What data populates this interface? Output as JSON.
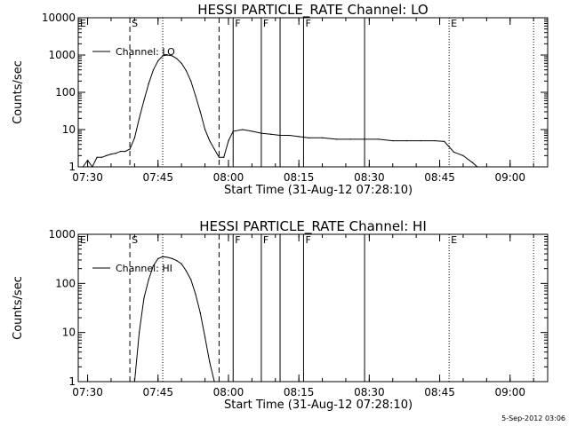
{
  "chart_data": [
    {
      "type": "line",
      "title": "HESSI PARTICLE_RATE Channel: LO",
      "xlabel": "Start Time (31-Aug-12 07:28:10)",
      "ylabel": "Counts/sec",
      "y_scale": "log",
      "xlim": [
        "07:28",
        "09:08"
      ],
      "ylim": [
        1,
        10000
      ],
      "x_tick_labels": [
        "07:30",
        "07:45",
        "08:00",
        "08:15",
        "08:30",
        "08:45",
        "09:00"
      ],
      "y_tick_labels": [
        "1",
        "10",
        "100",
        "1000",
        "10000"
      ],
      "legend": {
        "position": "top-left",
        "entries": [
          "Channel: LO"
        ]
      },
      "series": [
        {
          "name": "Channel: LO",
          "x": [
            "07:29",
            "07:30",
            "07:31",
            "07:32",
            "07:33",
            "07:34",
            "07:35",
            "07:36",
            "07:37",
            "07:38",
            "07:39",
            "07:40",
            "07:41",
            "07:42",
            "07:43",
            "07:44",
            "07:45",
            "07:46",
            "07:47",
            "07:48",
            "07:49",
            "07:50",
            "07:51",
            "07:52",
            "07:53",
            "07:54",
            "07:55",
            "07:56",
            "07:57",
            "07:58",
            "07:59",
            "08:00",
            "08:01",
            "08:03",
            "08:05",
            "08:07",
            "08:09",
            "08:11",
            "08:13",
            "08:15",
            "08:17",
            "08:20",
            "08:23",
            "08:26",
            "08:29",
            "08:32",
            "08:35",
            "08:38",
            "08:41",
            "08:44",
            "08:46",
            "08:48",
            "08:50",
            "08:51",
            "08:52",
            "08:53"
          ],
          "values": [
            1,
            1.5,
            1,
            1.8,
            1.8,
            2,
            2.2,
            2.3,
            2.6,
            2.6,
            3,
            6,
            20,
            60,
            170,
            400,
            700,
            950,
            1000,
            950,
            800,
            600,
            380,
            200,
            80,
            30,
            10,
            5,
            3,
            1.8,
            1.8,
            5,
            9,
            10,
            9,
            8,
            7.5,
            7,
            7,
            6.5,
            6,
            6,
            5.5,
            5.5,
            5.5,
            5.5,
            5,
            5,
            5,
            5,
            4.8,
            2.5,
            2,
            1.6,
            1.3,
            1
          ]
        }
      ],
      "annotations": {
        "dashed_lines": [
          "07:39",
          "07:58"
        ],
        "dotted_lines": [
          "07:46",
          "08:47",
          "09:05"
        ],
        "solid_lines": [
          "08:01",
          "08:07",
          "08:11",
          "08:16",
          "08:29"
        ],
        "letters": [
          {
            "text": "E",
            "x": "07:28"
          },
          {
            "text": "S",
            "x": "07:39"
          },
          {
            "text": "F",
            "x": "08:01"
          },
          {
            "text": "F",
            "x": "08:07"
          },
          {
            "text": "F",
            "x": "08:16"
          },
          {
            "text": "E",
            "x": "08:47"
          }
        ]
      }
    },
    {
      "type": "line",
      "title": "HESSI PARTICLE_RATE Channel: HI",
      "xlabel": "Start Time (31-Aug-12 07:28:10)",
      "ylabel": "Counts/sec",
      "y_scale": "log",
      "xlim": [
        "07:28",
        "09:08"
      ],
      "ylim": [
        1,
        1000
      ],
      "x_tick_labels": [
        "07:30",
        "07:45",
        "08:00",
        "08:15",
        "08:30",
        "08:45",
        "09:00"
      ],
      "y_tick_labels": [
        "1",
        "10",
        "100",
        "1000"
      ],
      "legend": {
        "position": "top-left",
        "entries": [
          "Channel: HI"
        ]
      },
      "series": [
        {
          "name": "Channel: HI",
          "x": [
            "07:40",
            "07:41",
            "07:42",
            "07:43",
            "07:44",
            "07:45",
            "07:46",
            "07:47",
            "07:48",
            "07:49",
            "07:50",
            "07:51",
            "07:52",
            "07:53",
            "07:54",
            "07:55",
            "07:56",
            "07:57"
          ],
          "values": [
            1,
            10,
            50,
            120,
            230,
            320,
            350,
            340,
            320,
            290,
            250,
            180,
            120,
            60,
            25,
            8,
            2.5,
            1
          ]
        }
      ],
      "annotations": {
        "dashed_lines": [
          "07:39",
          "07:58"
        ],
        "dotted_lines": [
          "07:46",
          "08:47",
          "09:05"
        ],
        "solid_lines": [
          "08:01",
          "08:07",
          "08:11",
          "08:16",
          "08:29"
        ],
        "letters": [
          {
            "text": "E",
            "x": "07:28"
          },
          {
            "text": "S",
            "x": "07:39"
          },
          {
            "text": "F",
            "x": "08:01"
          },
          {
            "text": "F",
            "x": "08:07"
          },
          {
            "text": "F",
            "x": "08:16"
          },
          {
            "text": "E",
            "x": "08:47"
          }
        ]
      }
    }
  ],
  "footer": {
    "timestamp": "5-Sep-2012 03:06"
  }
}
